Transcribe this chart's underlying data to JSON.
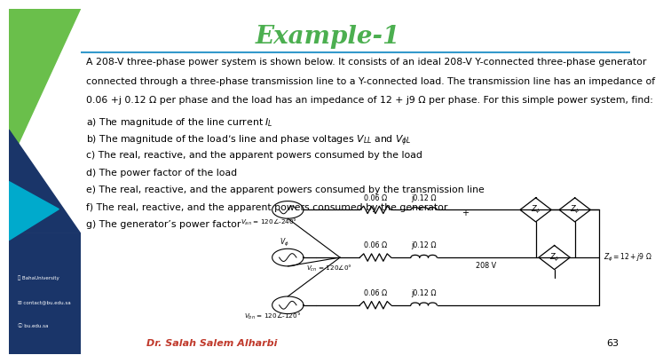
{
  "title": "Example-1",
  "title_color": "#4CAF50",
  "title_fontsize": 20,
  "bg_color": "#ffffff",
  "body_lines": [
    "A 208-V three-phase power system is shown below. It consists of an ideal 208-V Y-connected three-phase generator",
    "connected through a three-phase transmission line to a Y-connected load. The transmission line has an impedance of",
    "0.06 +j 0.12 Ω per phase and the load has an impedance of 12 + j9 Ω per phase. For this simple power system, find:"
  ],
  "items": [
    "a) The magnitude of the line current $I_L$",
    "b) The magnitude of the load’s line and phase voltages $V_{LL}$ and $V_{\\phi L}$",
    "c) The real, reactive, and the apparent powers consumed by the load",
    "d) The power factor of the load",
    "e) The real, reactive, and the apparent powers consumed by the transmission line",
    "f) The real, reactive, and the apparent powers consumed by the generator",
    "g) The generator’s power factor"
  ],
  "footer_name": "Dr. Salah Salem Alharbi",
  "footer_name_color": "#c0392b",
  "page_number": "63",
  "text_fontsize": 7.8,
  "item_fontsize": 7.8,
  "sidebar_green": "#6abf4b",
  "sidebar_blue": "#1a3569",
  "sidebar_cyan": "#00aacc"
}
